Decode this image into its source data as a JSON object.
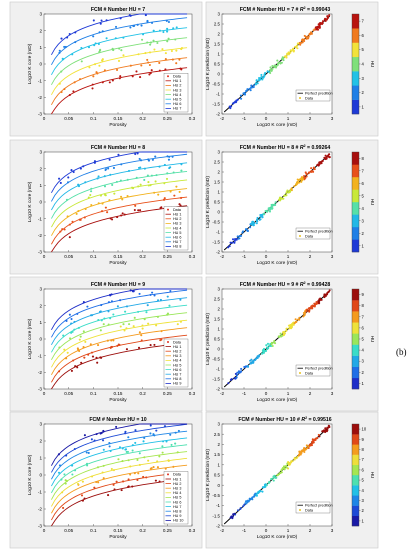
{
  "figure_label": "(b)",
  "hu_colors": {
    "1": [
      "#1a1aa6"
    ],
    "7": [
      "#1e3ad6",
      "#1f7fe6",
      "#22c2e6",
      "#7fe07a",
      "#f2e23a",
      "#f07a1e",
      "#b8140f"
    ],
    "8": [
      "#1e3ad6",
      "#1f7fe6",
      "#22b8e6",
      "#56e0a8",
      "#c8e83a",
      "#f2b21e",
      "#e8501a",
      "#a8100e"
    ],
    "9": [
      "#1e2ec8",
      "#1f6ee6",
      "#22a8e6",
      "#3adcc8",
      "#9ae65a",
      "#eee23a",
      "#f49a1e",
      "#e04818",
      "#9c0e0c"
    ],
    "10": [
      "#1a1aa6",
      "#1e4ad6",
      "#1f86e6",
      "#22c0e6",
      "#4ee0b0",
      "#a6e650",
      "#eede3a",
      "#f49c1e",
      "#e04818",
      "#9c0e0c"
    ]
  },
  "chart_data": [
    {
      "type": "scatter",
      "title": "FCM # Number HU = 7",
      "xlabel": "Porosity",
      "ylabel": "Log10 K core (mD)",
      "xlim": [
        0,
        0.3
      ],
      "ylim": [
        -3,
        3
      ],
      "xticks": [
        "0",
        "0.05",
        "0.1",
        "0.15",
        "0.2",
        "0.25",
        "0.3"
      ],
      "yticks": [
        "-3",
        "-2",
        "-1",
        "0",
        "1",
        "2",
        "3"
      ],
      "legend": "bottom-right",
      "legend_entries": [
        "Data",
        "HU 1",
        "HU 2",
        "HU 3",
        "HU 4",
        "HU 5",
        "HU 6",
        "HU 7"
      ],
      "hu_count": 7
    },
    {
      "type": "scatter",
      "title": "FCM # Number HU = 7 # R2 = 0.99043",
      "title_main": "FCM # Number HU = 7 # ",
      "title_r2_label": "R",
      "title_r2_exp": "2",
      "title_r2_value": " = 0.99043",
      "xlabel": "Log10 K core (mD)",
      "ylabel": "Log10 K prediction (mD)",
      "xlim": [
        -2,
        3
      ],
      "ylim": [
        -2,
        3
      ],
      "xticks": [
        "-2",
        "-1",
        "0",
        "1",
        "2",
        "3"
      ],
      "yticks": [
        "-2",
        "-1.5",
        "-1",
        "-0.5",
        "0",
        "0.5",
        "1",
        "1.5",
        "2",
        "2.5",
        "3"
      ],
      "legend": "bottom-right",
      "legend_entries": [
        "Perfect predition",
        "Data"
      ],
      "colorbar_label": "HU",
      "colorbar_ticks": [
        "1",
        "2",
        "3",
        "4",
        "5",
        "6",
        "7"
      ],
      "hu_count": 7
    },
    {
      "type": "scatter",
      "title": "FCM # Number HU = 8",
      "xlabel": "Porosity",
      "ylabel": "Log10 K core (mD)",
      "xlim": [
        0,
        0.3
      ],
      "ylim": [
        -3,
        3
      ],
      "xticks": [
        "0",
        "0.05",
        "0.1",
        "0.15",
        "0.2",
        "0.25",
        "0.3"
      ],
      "yticks": [
        "-3",
        "-2",
        "-1",
        "0",
        "1",
        "2",
        "3"
      ],
      "legend": "bottom-right",
      "legend_entries": [
        "Data",
        "HU 1",
        "HU 2",
        "HU 3",
        "HU 4",
        "HU 5",
        "HU 6",
        "HU 7",
        "HU 8"
      ],
      "hu_count": 8
    },
    {
      "type": "scatter",
      "title": "FCM # Number HU = 8 # R2 = 0.99264",
      "title_main": "FCM # Number HU = 8 # ",
      "title_r2_label": "R",
      "title_r2_exp": "2",
      "title_r2_value": " = 0.99264",
      "xlabel": "Log10 K core (mD)",
      "ylabel": "Log10 K prediction (mD)",
      "xlim": [
        -2,
        3
      ],
      "ylim": [
        -2,
        3
      ],
      "xticks": [
        "-2",
        "-1",
        "0",
        "1",
        "2",
        "3"
      ],
      "yticks": [
        "-2",
        "-1.5",
        "-1",
        "-0.5",
        "0",
        "0.5",
        "1",
        "1.5",
        "2",
        "2.5",
        "3"
      ],
      "legend": "bottom-right",
      "legend_entries": [
        "Perfect predition",
        "Data"
      ],
      "colorbar_label": "HU",
      "colorbar_ticks": [
        "1",
        "2",
        "3",
        "4",
        "5",
        "6",
        "7",
        "8"
      ],
      "hu_count": 8
    },
    {
      "type": "scatter",
      "title": "FCM # Number HU = 9",
      "xlabel": "Porosity",
      "ylabel": "Log10 K core (mD)",
      "xlim": [
        0,
        0.3
      ],
      "ylim": [
        -3,
        3
      ],
      "xticks": [
        "0",
        "0.05",
        "0.1",
        "0.15",
        "0.2",
        "0.25",
        "0.3"
      ],
      "yticks": [
        "-3",
        "-2",
        "-1",
        "0",
        "1",
        "2",
        "3"
      ],
      "legend": "bottom-right",
      "legend_entries": [
        "Data",
        "HU 1",
        "HU 2",
        "HU 3",
        "HU 4",
        "HU 5",
        "HU 6",
        "HU 7",
        "HU 8",
        "HU 9"
      ],
      "hu_count": 9
    },
    {
      "type": "scatter",
      "title": "FCM # Number HU = 9 # R2 = 0.99428",
      "title_main": "FCM # Number HU = 9 # ",
      "title_r2_label": "R",
      "title_r2_exp": "2",
      "title_r2_value": " = 0.99428",
      "xlabel": "Log10 K core (mD)",
      "ylabel": "Log10 K prediction (mD)",
      "xlim": [
        -2,
        3
      ],
      "ylim": [
        -2,
        3
      ],
      "xticks": [
        "-2",
        "-1",
        "0",
        "1",
        "2",
        "3"
      ],
      "yticks": [
        "-2",
        "-1.5",
        "-1",
        "-0.5",
        "0",
        "0.5",
        "1",
        "1.5",
        "2",
        "2.5",
        "3"
      ],
      "legend": "bottom-right",
      "legend_entries": [
        "Perfect predition",
        "Data"
      ],
      "colorbar_label": "HU",
      "colorbar_ticks": [
        "1",
        "2",
        "3",
        "4",
        "5",
        "6",
        "7",
        "8",
        "9"
      ],
      "hu_count": 9
    },
    {
      "type": "scatter",
      "title": "FCM # Number HU = 10",
      "xlabel": "Porosity",
      "ylabel": "Log10 K core (mD)",
      "xlim": [
        0,
        0.3
      ],
      "ylim": [
        -3,
        3
      ],
      "xticks": [
        "0",
        "0.05",
        "0.1",
        "0.15",
        "0.2",
        "0.25",
        "0.3"
      ],
      "yticks": [
        "-3",
        "-2",
        "-1",
        "0",
        "1",
        "2",
        "3"
      ],
      "legend": "bottom-right",
      "legend_entries": [
        "Data",
        "HU 1",
        "HU 2",
        "HU 3",
        "HU 4",
        "HU 5",
        "HU 6",
        "HU 7",
        "HU 8",
        "HU 9",
        "HU 10"
      ],
      "hu_count": 10
    },
    {
      "type": "scatter",
      "title": "FCM # Number HU = 10 # R2 = 0.99516",
      "title_main": "FCM # Number HU = 10 # ",
      "title_r2_label": "R",
      "title_r2_exp": "2",
      "title_r2_value": " = 0.99516",
      "xlabel": "Log10 K core (mD)",
      "ylabel": "Log10 K prediction (mD)",
      "xlim": [
        -2,
        3
      ],
      "ylim": [
        -2,
        3
      ],
      "xticks": [
        "-2",
        "-1",
        "0",
        "1",
        "2",
        "3"
      ],
      "yticks": [
        "-2",
        "-1.5",
        "-1",
        "-0.5",
        "0",
        "0.5",
        "1",
        "1.5",
        "2",
        "2.5",
        "3"
      ],
      "legend": "bottom-right",
      "legend_entries": [
        "Perfect predition",
        "Data"
      ],
      "colorbar_label": "HU",
      "colorbar_ticks": [
        "1",
        "2",
        "3",
        "4",
        "5",
        "6",
        "7",
        "8",
        "9",
        "10"
      ],
      "hu_count": 10
    }
  ]
}
